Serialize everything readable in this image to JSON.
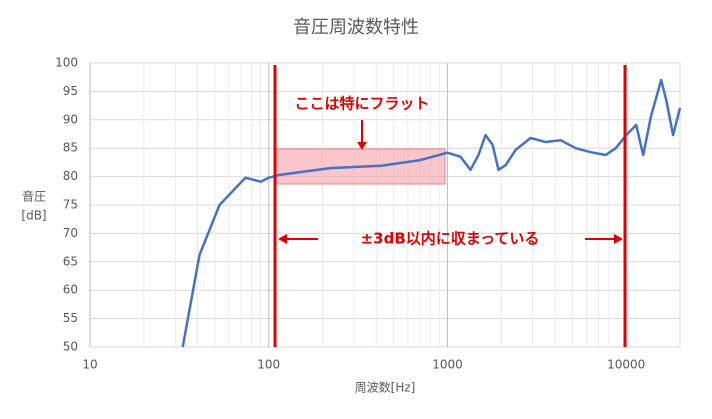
{
  "chart_data": {
    "type": "line",
    "title": "音圧周波数特性",
    "xlabel": "周波数[Hz]",
    "ylabel": [
      "音圧",
      "[dB]"
    ],
    "annotations": [
      "ここは特にフラット",
      "±3dB以内に収まっている"
    ],
    "log_x": true,
    "grid": true,
    "minor_grid": true,
    "xlim": [
      10,
      20000
    ],
    "xticks": [
      10,
      100,
      1000,
      10000
    ],
    "ylim": [
      50,
      100
    ],
    "yticks": [
      50,
      55,
      60,
      65,
      70,
      75,
      80,
      85,
      90,
      95,
      100
    ],
    "x": [
      33,
      41,
      53,
      74,
      90,
      100,
      115,
      150,
      221,
      421,
      706,
      1000,
      1182,
      1346,
      1492,
      1633,
      1788,
      1930,
      2114,
      2405,
      2917,
      3540,
      4297,
      5215,
      6330,
      7680,
      8730,
      10000,
      11380,
      12450,
      13800,
      15700,
      16750,
      18300,
      20000
    ],
    "series": [
      {
        "name": "音圧",
        "color": "#4472c4",
        "values": [
          50,
          66.2,
          75,
          79.8,
          79.1,
          79.8,
          80.3,
          80.8,
          81.5,
          81.9,
          82.9,
          84.2,
          83.5,
          81.2,
          83.8,
          87.3,
          85.6,
          81.2,
          82,
          84.7,
          86.8,
          86.1,
          86.4,
          85,
          84.3,
          83.8,
          85,
          87.3,
          89.1,
          83.8,
          90.8,
          97,
          93.5,
          87.3,
          92.1
        ]
      }
    ]
  }
}
